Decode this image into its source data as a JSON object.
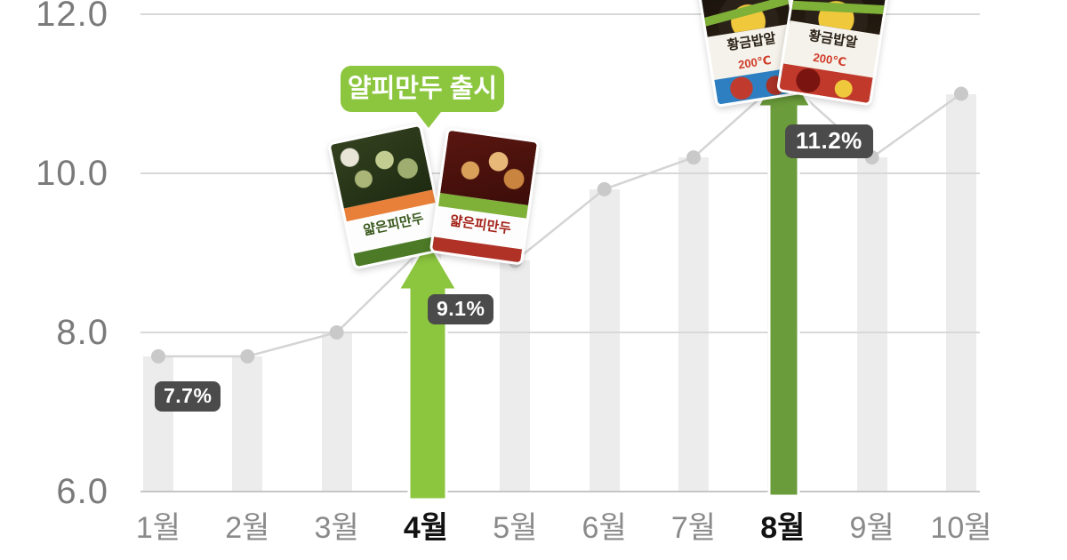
{
  "chart_data": {
    "type": "bar",
    "subtype": "bar-with-line-overlay",
    "categories": [
      "1월",
      "2월",
      "3월",
      "4월",
      "5월",
      "6월",
      "7월",
      "8월",
      "9월",
      "10월"
    ],
    "emphasized_categories": [
      "4월",
      "8월"
    ],
    "series": [
      {
        "name": "monthly-share-bars",
        "type": "bar",
        "values": [
          7.7,
          7.7,
          8.0,
          9.1,
          8.9,
          9.8,
          10.2,
          11.2,
          10.2,
          11.0
        ]
      },
      {
        "name": "monthly-share-line",
        "type": "line",
        "values": [
          7.7,
          7.7,
          8.0,
          9.1,
          8.9,
          9.8,
          10.2,
          11.2,
          10.2,
          11.0
        ],
        "markers": [
          true,
          true,
          true,
          false,
          true,
          true,
          true,
          false,
          true,
          true
        ]
      }
    ],
    "ylim": [
      6.0,
      12.2
    ],
    "yticks": [
      {
        "value": 6.0,
        "label": "6.0"
      },
      {
        "value": 8.0,
        "label": "8.0"
      },
      {
        "value": 10.0,
        "label": "10.0"
      },
      {
        "value": 12.0,
        "label": "12.0"
      }
    ],
    "grid": "horizontal",
    "legend": "none",
    "annotations": [
      {
        "category": "1월",
        "label": "7.7%"
      },
      {
        "category": "4월",
        "label": "9.1%"
      },
      {
        "category": "8월",
        "label": "11.2%"
      }
    ],
    "callout": {
      "text": "얄피만두 출시",
      "category": "4월"
    },
    "arrows": [
      {
        "category": "4월",
        "color": "#8cc63f"
      },
      {
        "category": "8월",
        "color": "#6b9c3b"
      }
    ]
  },
  "products": {
    "april": [
      {
        "label": "얇은피만두",
        "theme": "green"
      },
      {
        "label": "얇은피만두",
        "theme": "red"
      }
    ],
    "august": [
      {
        "label": "황금밥알",
        "sub": "200℃",
        "theme": "blue"
      },
      {
        "label": "황금밥알",
        "sub": "200℃",
        "theme": "red"
      }
    ]
  },
  "colors": {
    "accent_green_light": "#8cc63f",
    "accent_green_dark": "#6b9c3b",
    "pill_bg": "#4b4b4b",
    "bar": "#ececec",
    "line": "#d4d4d4",
    "dot": "#c9c9c9",
    "grid": "#d8d8d8",
    "axis_text": "#8a8a8a",
    "axis_text_emphasis": "#121212"
  }
}
